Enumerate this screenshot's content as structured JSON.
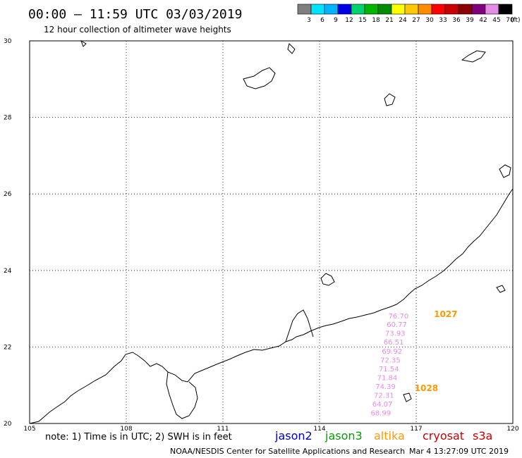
{
  "header": {
    "time_range": "00:00 – 11:59 UTC 03/03/2019",
    "subtitle": "12 hour collection of altimeter wave heights"
  },
  "legend": {
    "unit": "(ft)",
    "bins": [
      {
        "label": "3",
        "color": "#7f7f7f"
      },
      {
        "label": "6",
        "color": "#00e5ff"
      },
      {
        "label": "9",
        "color": "#00b4ff"
      },
      {
        "label": "12",
        "color": "#0000e6"
      },
      {
        "label": "15",
        "color": "#00d26e"
      },
      {
        "label": "18",
        "color": "#00b400"
      },
      {
        "label": "21",
        "color": "#008c00"
      },
      {
        "label": "24",
        "color": "#ffff00"
      },
      {
        "label": "27",
        "color": "#ffc800"
      },
      {
        "label": "30",
        "color": "#ff8c00"
      },
      {
        "label": "33",
        "color": "#ff0000"
      },
      {
        "label": "36",
        "color": "#c80000"
      },
      {
        "label": "39",
        "color": "#8c0000"
      },
      {
        "label": "42",
        "color": "#800080"
      },
      {
        "label": "45",
        "color": "#e68ce6"
      },
      {
        "label": "70",
        "color": "#000000"
      }
    ]
  },
  "chart_data": {
    "type": "scatter",
    "title": "",
    "xlabel": "",
    "ylabel": "",
    "xlim": [
      105,
      120
    ],
    "ylim": [
      20,
      30
    ],
    "x_ticks": [
      "105",
      "108",
      "111",
      "114",
      "117",
      "120"
    ],
    "y_ticks": [
      "20",
      "22",
      "24",
      "26",
      "28",
      "30"
    ],
    "grid": true,
    "series": [
      {
        "name": "cryosat",
        "color": "#e68ce6",
        "points": [
          {
            "lon": 116.45,
            "lat": 22.82,
            "label": "76.70"
          },
          {
            "lon": 116.4,
            "lat": 22.6,
            "label": "60.77"
          },
          {
            "lon": 116.35,
            "lat": 22.37,
            "label": "73.93"
          },
          {
            "lon": 116.3,
            "lat": 22.14,
            "label": "66.51"
          },
          {
            "lon": 116.25,
            "lat": 21.9,
            "label": "69.92"
          },
          {
            "lon": 116.2,
            "lat": 21.67,
            "label": "72.35"
          },
          {
            "lon": 116.15,
            "lat": 21.44,
            "label": "71.54"
          },
          {
            "lon": 116.1,
            "lat": 21.21,
            "label": "71.84"
          },
          {
            "lon": 116.05,
            "lat": 20.98,
            "label": "74.39"
          },
          {
            "lon": 116.0,
            "lat": 20.75,
            "label": "72.31"
          },
          {
            "lon": 115.95,
            "lat": 20.52,
            "label": "64.07"
          },
          {
            "lon": 115.9,
            "lat": 20.29,
            "label": "68.99"
          }
        ]
      }
    ],
    "annotations": [
      {
        "lon": 117.55,
        "lat": 22.85,
        "text": "1027",
        "color": "#ff9900"
      },
      {
        "lon": 116.95,
        "lat": 20.92,
        "text": "1028",
        "color": "#ff9900"
      }
    ]
  },
  "footer": {
    "note": "note: 1) Time is in UTC; 2) SWH is in feet",
    "missions": [
      {
        "label": "jason2",
        "color": "#0000cc"
      },
      {
        "label": "jason3",
        "color": "#00a000"
      },
      {
        "label": "altika",
        "color": "#ff9900"
      },
      {
        "label": "cryosat",
        "color": "#cc0000"
      },
      {
        "label": "s3a",
        "color": "#cc0000"
      }
    ],
    "credit": "NOAA/NESDIS Center for Satellite Applications and Research",
    "timestamp": "Mar  4 13:27:09 UTC 2019"
  }
}
